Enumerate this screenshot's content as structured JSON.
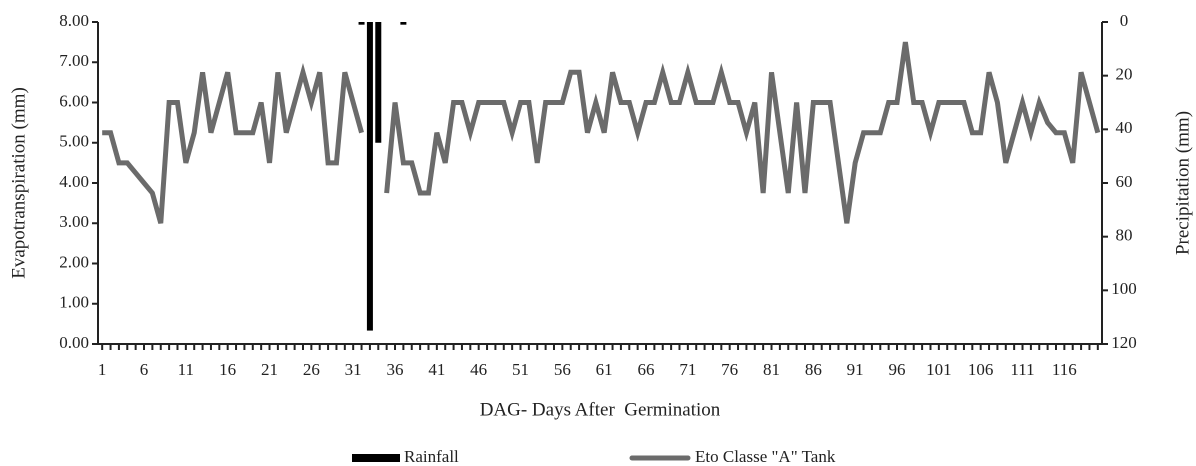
{
  "chart_data": {
    "type": "line",
    "x_label": "DAG- Days After  Germination",
    "y_label": "Evapotranspiration (mm)",
    "y2_label": "Precipitation (mm)",
    "categories": [
      "1",
      null,
      null,
      null,
      null,
      "6",
      null,
      null,
      null,
      null,
      "11",
      null,
      null,
      null,
      null,
      "16",
      null,
      null,
      null,
      null,
      "21",
      null,
      null,
      null,
      null,
      "26",
      null,
      null,
      null,
      null,
      "31",
      null,
      null,
      null,
      null,
      "36",
      null,
      null,
      null,
      null,
      "41",
      null,
      null,
      null,
      null,
      "46",
      null,
      null,
      null,
      null,
      "51",
      null,
      null,
      null,
      null,
      "56",
      null,
      null,
      null,
      null,
      "61",
      null,
      null,
      null,
      null,
      "66",
      null,
      null,
      null,
      null,
      "71",
      null,
      null,
      null,
      null,
      "76",
      null,
      null,
      null,
      null,
      "81",
      null,
      null,
      null,
      null,
      "86",
      null,
      null,
      null,
      null,
      "91",
      null,
      null,
      null,
      null,
      "96",
      null,
      null,
      null,
      null,
      "101",
      null,
      null,
      null,
      null,
      "106",
      null,
      null,
      null,
      null,
      "111",
      null,
      null,
      null,
      null,
      "116",
      null,
      null,
      null,
      null
    ],
    "series": [
      {
        "name": "Rainfall",
        "type": "bar",
        "axis": "y2",
        "color": "#000000",
        "values": [
          null,
          null,
          null,
          null,
          null,
          null,
          null,
          null,
          null,
          null,
          null,
          null,
          null,
          null,
          null,
          null,
          null,
          null,
          null,
          null,
          null,
          null,
          null,
          null,
          null,
          null,
          null,
          null,
          null,
          null,
          null,
          1,
          115,
          45,
          null,
          null,
          1,
          null,
          null,
          null,
          null,
          null,
          null,
          null,
          null,
          null,
          null,
          null,
          null,
          null,
          null,
          null,
          null,
          null,
          null,
          null,
          null,
          null,
          null,
          null,
          null,
          null,
          null,
          null,
          null,
          null,
          null,
          null,
          null,
          null,
          null,
          null,
          null,
          null,
          null,
          null,
          null,
          null,
          null,
          null,
          null,
          null,
          null,
          null,
          null,
          null,
          null,
          null,
          null,
          null,
          null,
          null,
          null,
          null,
          null,
          null,
          null,
          null,
          null,
          null,
          null,
          null,
          null,
          null,
          null,
          null,
          null,
          null,
          null,
          null,
          null,
          null,
          null,
          null,
          null,
          null,
          null,
          null,
          null,
          null
        ]
      },
      {
        "name": "Eto Classe \"A\" Tank",
        "type": "line",
        "color": "#6b6b6b",
        "values": [
          5.25,
          5.25,
          4.5,
          4.5,
          4.25,
          4.0,
          3.75,
          3.0,
          6.0,
          6.0,
          4.5,
          5.25,
          6.75,
          5.25,
          6.0,
          6.75,
          5.25,
          5.25,
          5.25,
          6.0,
          4.5,
          6.75,
          5.25,
          6.0,
          6.75,
          6.0,
          6.75,
          4.5,
          4.5,
          6.75,
          6.0,
          5.25,
          null,
          null,
          3.75,
          6.0,
          4.5,
          4.5,
          3.75,
          3.75,
          5.25,
          4.5,
          6.0,
          6.0,
          5.25,
          6.0,
          6.0,
          6.0,
          6.0,
          5.25,
          6.0,
          6.0,
          4.5,
          6.0,
          6.0,
          6.0,
          6.75,
          6.75,
          5.25,
          6.0,
          5.25,
          6.75,
          6.0,
          6.0,
          5.25,
          6.0,
          6.0,
          6.75,
          6.0,
          6.0,
          6.75,
          6.0,
          6.0,
          6.0,
          6.75,
          6.0,
          6.0,
          5.25,
          6.0,
          3.75,
          6.75,
          5.25,
          3.75,
          6.0,
          3.75,
          6.0,
          6.0,
          6.0,
          4.5,
          3.0,
          4.5,
          5.25,
          5.25,
          5.25,
          6.0,
          6.0,
          7.5,
          6.0,
          6.0,
          5.25,
          6.0,
          6.0,
          6.0,
          6.0,
          5.25,
          5.25,
          6.75,
          6.0,
          4.5,
          5.25,
          6.0,
          5.25,
          6.0,
          5.5,
          5.25,
          5.25,
          4.5,
          6.75,
          6.0,
          5.25
        ]
      }
    ],
    "ylim": [
      0,
      8
    ],
    "yticks": [
      {
        "value": 0,
        "label": "0.00"
      },
      {
        "value": 1,
        "label": "1.00"
      },
      {
        "value": 2,
        "label": "2.00"
      },
      {
        "value": 3,
        "label": "3.00"
      },
      {
        "value": 4,
        "label": "4.00"
      },
      {
        "value": 5,
        "label": "5.00"
      },
      {
        "value": 6,
        "label": "6.00"
      },
      {
        "value": 7,
        "label": "7.00"
      },
      {
        "value": 8,
        "label": "8.00"
      }
    ],
    "y2lim": [
      0,
      120
    ],
    "y2_inverted": true,
    "y2ticks": [
      0,
      20,
      40,
      60,
      80,
      100,
      120
    ],
    "grid": false
  }
}
